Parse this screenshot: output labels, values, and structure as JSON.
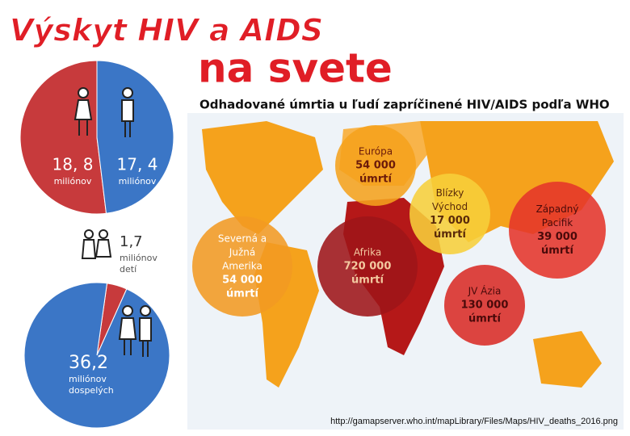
{
  "title": "Výskyt HIV a AIDS",
  "title2": "na svete",
  "subtitle": "Odhadované úmrtia u ľudí zapríčinené HIV/AIDS podľa WHO",
  "pies": [
    {
      "slices": [
        {
          "value": 18.8,
          "label": "18, 8",
          "unit": [
            "miliónov"
          ],
          "color": "#c73a3c"
        },
        {
          "value": 17.4,
          "label": "17, 4",
          "unit": [
            "miliónov"
          ],
          "color": "#3b76c6"
        }
      ]
    },
    {
      "slices": [
        {
          "value": 1.7,
          "label": "1,7",
          "unit": [
            "miliónov",
            "detí"
          ],
          "color": "#c73a3c"
        },
        {
          "value": 36.2,
          "label": "36,2",
          "unit": [
            "miliónov",
            "dospelých"
          ],
          "color": "#3b76c6"
        }
      ]
    }
  ],
  "regions": [
    {
      "name": [
        "Európa"
      ],
      "deaths": "54 000",
      "unit": "úmrtí",
      "color": "#f5a21c",
      "text_color": "#6b1a0a"
    },
    {
      "name": [
        "Severná a",
        "Južná",
        "Amerika"
      ],
      "deaths": "54 000",
      "unit": "úmrtí",
      "color": "#f29a22",
      "text_color": "#ffffff"
    },
    {
      "name": [
        "Afrika"
      ],
      "deaths": "720 000",
      "unit": "úmrtí",
      "color": "#9e1518",
      "text_color": "#f3c9a0"
    },
    {
      "name": [
        "Blízky",
        "Východ"
      ],
      "deaths": "17 000",
      "unit": "úmrtí",
      "color": "#f7cf3a",
      "text_color": "#5a2a0a"
    },
    {
      "name": [
        "Západný",
        "Pacifik"
      ],
      "deaths": "39 000",
      "unit": "úmrtí",
      "color": "#e5342a",
      "text_color": "#4a0a0a"
    },
    {
      "name": [
        "JV Ázia"
      ],
      "deaths": "130 000",
      "unit": "úmrtí",
      "color": "#d92b25",
      "text_color": "#4a0a0a"
    }
  ],
  "source": "http://gamapserver.who.int/mapLibrary/Files/Maps/HIV_deaths_2016.png"
}
